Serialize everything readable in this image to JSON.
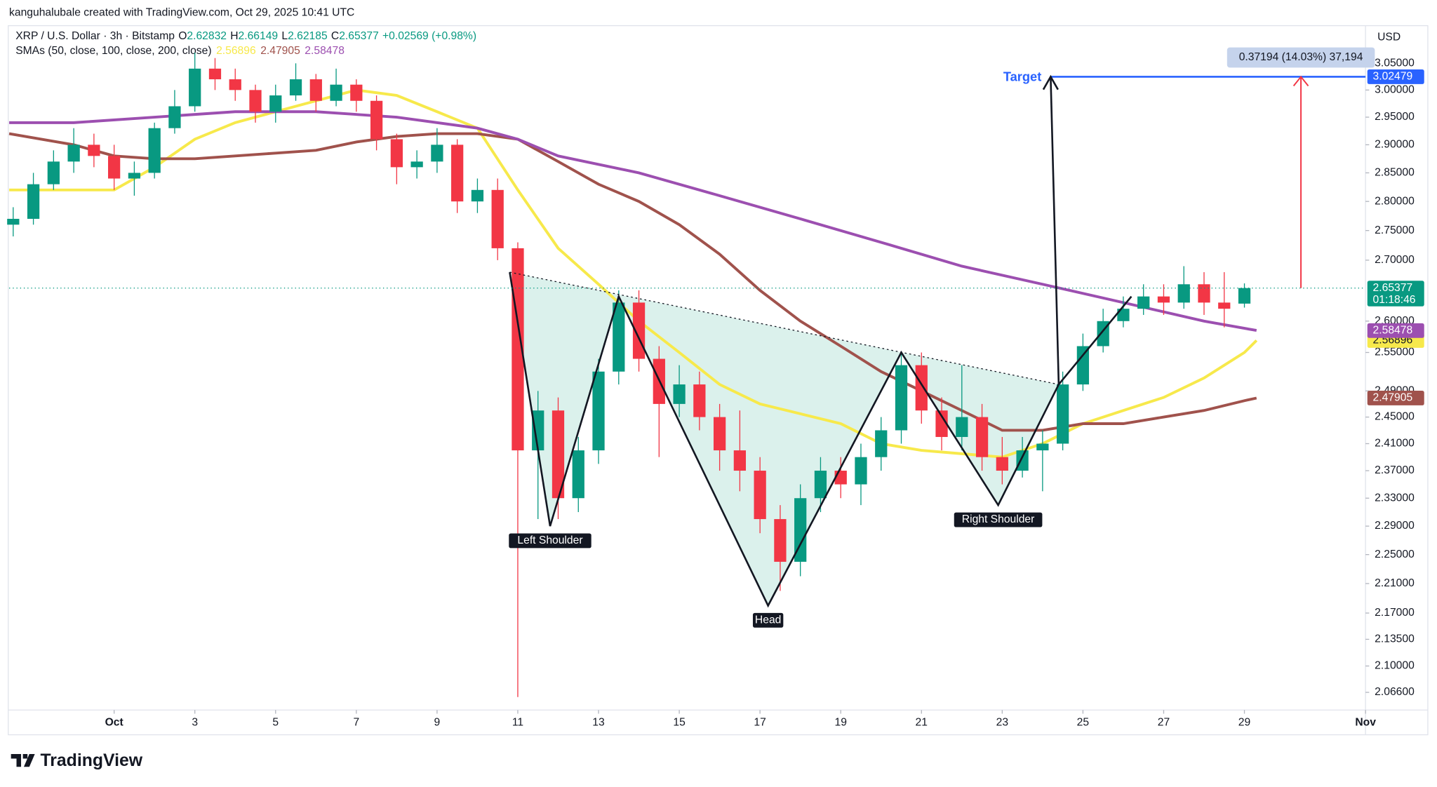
{
  "header": {
    "credit": "kanguhalubale created with TradingView.com, Oct 29, 2025 10:41 UTC",
    "symbol": "XRP / U.S. Dollar · 3h · Bitstamp",
    "quote": [
      {
        "key": "O",
        "value": 2.62832
      },
      {
        "key": "H",
        "value": 2.66149
      },
      {
        "key": "L",
        "value": 2.62185
      },
      {
        "key": "C",
        "value": 2.65377
      }
    ],
    "change": "+0.02569 (+0.98%)",
    "indicator": "SMAs (50, close, 100, close, 200, close)",
    "currency": "USD"
  },
  "footer": {
    "logo": "TradingView"
  },
  "chart_data": {
    "type": "candlestick",
    "log_scale": true,
    "grid": false,
    "up_color": "#089981",
    "down_color": "#f23645",
    "x": [
      -1.5,
      -1,
      -0.5,
      0,
      0.5,
      1,
      1.5,
      2,
      2.5,
      3,
      3.5,
      4,
      4.5,
      5,
      5.5,
      6,
      6.5,
      7,
      7.5,
      8,
      8.5,
      9,
      9.5,
      10,
      10.5,
      11,
      11.5,
      12,
      12.5,
      13,
      13.5,
      14,
      14.5,
      15,
      15.5,
      16,
      16.5,
      17,
      17.5,
      18,
      18.5,
      19,
      19.5,
      20,
      20.5,
      21,
      21.5,
      22,
      22.5,
      23,
      23.5,
      24,
      24.5,
      25,
      25.5,
      26,
      26.5,
      27,
      27.5,
      28,
      28.5,
      29
    ],
    "open": [
      2.76,
      2.77,
      2.83,
      2.87,
      2.9,
      2.88,
      2.84,
      2.85,
      2.93,
      2.97,
      3.04,
      3.02,
      3.0,
      2.96,
      2.99,
      3.02,
      2.98,
      3.01,
      2.98,
      2.91,
      2.86,
      2.87,
      2.9,
      2.8,
      2.82,
      2.72,
      2.4,
      2.46,
      2.33,
      2.4,
      2.52,
      2.63,
      2.54,
      2.47,
      2.5,
      2.45,
      2.4,
      2.37,
      2.3,
      2.24,
      2.33,
      2.37,
      2.35,
      2.39,
      2.43,
      2.53,
      2.46,
      2.42,
      2.45,
      2.39,
      2.37,
      2.4,
      2.41,
      2.5,
      2.56,
      2.6,
      2.62,
      2.64,
      2.63,
      2.66,
      2.63,
      2.62832
    ],
    "high": [
      2.79,
      2.85,
      2.89,
      2.93,
      2.92,
      2.9,
      2.87,
      2.94,
      3.0,
      3.07,
      3.06,
      3.04,
      3.01,
      3.01,
      3.05,
      3.03,
      3.04,
      3.02,
      2.99,
      2.92,
      2.89,
      2.93,
      2.91,
      2.84,
      2.84,
      2.73,
      2.49,
      2.48,
      2.42,
      2.54,
      2.65,
      2.65,
      2.56,
      2.53,
      2.52,
      2.47,
      2.46,
      2.39,
      2.32,
      2.35,
      2.39,
      2.39,
      2.41,
      2.45,
      2.55,
      2.55,
      2.48,
      2.53,
      2.47,
      2.42,
      2.42,
      2.43,
      2.52,
      2.58,
      2.62,
      2.64,
      2.66,
      2.66,
      2.69,
      2.68,
      2.68,
      2.66149
    ],
    "low": [
      2.74,
      2.76,
      2.82,
      2.85,
      2.86,
      2.82,
      2.81,
      2.84,
      2.92,
      2.96,
      3.0,
      2.98,
      2.94,
      2.94,
      2.98,
      2.96,
      2.97,
      2.96,
      2.89,
      2.83,
      2.84,
      2.85,
      2.78,
      2.78,
      2.7,
      2.06,
      2.3,
      2.3,
      2.31,
      2.38,
      2.5,
      2.52,
      2.39,
      2.45,
      2.43,
      2.37,
      2.34,
      2.28,
      2.2,
      2.22,
      2.31,
      2.33,
      2.32,
      2.37,
      2.41,
      2.44,
      2.4,
      2.4,
      2.37,
      2.35,
      2.36,
      2.34,
      2.4,
      2.49,
      2.55,
      2.59,
      2.61,
      2.61,
      2.62,
      2.61,
      2.59,
      2.62185
    ],
    "close": [
      2.77,
      2.83,
      2.87,
      2.9,
      2.88,
      2.84,
      2.85,
      2.93,
      2.97,
      3.04,
      3.02,
      3.0,
      2.96,
      2.99,
      3.02,
      2.98,
      3.01,
      2.98,
      2.91,
      2.86,
      2.87,
      2.9,
      2.8,
      2.82,
      2.72,
      2.4,
      2.46,
      2.33,
      2.4,
      2.52,
      2.63,
      2.54,
      2.47,
      2.5,
      2.45,
      2.4,
      2.37,
      2.3,
      2.24,
      2.33,
      2.37,
      2.35,
      2.39,
      2.43,
      2.53,
      2.46,
      2.42,
      2.45,
      2.39,
      2.37,
      2.4,
      2.41,
      2.5,
      2.56,
      2.6,
      2.62,
      2.64,
      2.63,
      2.66,
      2.63,
      2.62,
      2.65377
    ],
    "series": [
      {
        "color": "#f7e94b",
        "last_value": 2.56896,
        "label_color": "#131722",
        "x": [
          -1.6,
          0,
          1,
          2,
          3,
          4,
          5,
          6,
          7,
          8,
          9,
          10,
          11,
          12,
          13,
          14,
          15,
          16,
          17,
          18,
          19,
          20,
          21,
          22,
          23,
          24,
          25,
          26,
          27,
          28,
          29,
          29.3
        ],
        "values": [
          2.82,
          2.82,
          2.82,
          2.86,
          2.91,
          2.94,
          2.96,
          2.98,
          3.0,
          2.99,
          2.96,
          2.93,
          2.82,
          2.72,
          2.66,
          2.6,
          2.55,
          2.5,
          2.47,
          2.455,
          2.44,
          2.41,
          2.4,
          2.395,
          2.39,
          2.41,
          2.44,
          2.46,
          2.48,
          2.51,
          2.55,
          2.569
        ]
      },
      {
        "color": "#a0524c",
        "last_value": 2.47905,
        "label_color": "#ffffff",
        "x": [
          -1.6,
          0,
          1,
          2,
          3,
          4,
          5,
          6,
          7,
          8,
          9,
          10,
          11,
          12,
          13,
          14,
          15,
          16,
          17,
          18,
          19,
          20,
          21,
          22,
          23,
          24,
          25,
          26,
          27,
          28,
          29,
          29.3
        ],
        "values": [
          2.92,
          2.9,
          2.88,
          2.875,
          2.875,
          2.88,
          2.885,
          2.89,
          2.905,
          2.915,
          2.92,
          2.92,
          2.91,
          2.87,
          2.83,
          2.8,
          2.76,
          2.71,
          2.65,
          2.6,
          2.56,
          2.52,
          2.49,
          2.46,
          2.43,
          2.43,
          2.44,
          2.44,
          2.45,
          2.46,
          2.475,
          2.479
        ]
      },
      {
        "color": "#9c4fb0",
        "last_value": 2.58478,
        "label_color": "#ffffff",
        "x": [
          -1.6,
          0,
          2,
          4,
          6,
          8,
          10,
          11,
          12,
          14,
          16,
          18,
          20,
          22,
          24,
          26,
          28,
          29.3
        ],
        "values": [
          2.94,
          2.94,
          2.95,
          2.96,
          2.96,
          2.95,
          2.93,
          2.91,
          2.88,
          2.85,
          2.81,
          2.77,
          2.73,
          2.69,
          2.66,
          2.63,
          2.6,
          2.585
        ]
      }
    ],
    "xlim": [
      -1.6,
      32
    ],
    "xticks": [
      {
        "value": 1,
        "label": "Oct"
      },
      3,
      5,
      7,
      9,
      11,
      13,
      15,
      17,
      19,
      21,
      23,
      25,
      27,
      29,
      {
        "value": 32,
        "label": "Nov"
      }
    ],
    "ylim": [
      2.0435,
      3.122
    ],
    "yticks": [
      {
        "value": 3.05,
        "label": "3.05000"
      },
      {
        "value": 3.0,
        "label": "3.00000"
      },
      {
        "value": 2.95,
        "label": "2.95000"
      },
      {
        "value": 2.9,
        "label": "2.90000"
      },
      {
        "value": 2.85,
        "label": "2.85000"
      },
      {
        "value": 2.8,
        "label": "2.80000"
      },
      {
        "value": 2.75,
        "label": "2.75000"
      },
      {
        "value": 2.7,
        "label": "2.70000"
      },
      {
        "value": 2.6,
        "label": "2.60000"
      },
      {
        "value": 2.55,
        "label": "2.55000"
      },
      {
        "value": 2.49,
        "label": "2.49000"
      },
      {
        "value": 2.45,
        "label": "2.45000"
      },
      {
        "value": 2.41,
        "label": "2.41000"
      },
      {
        "value": 2.37,
        "label": "2.37000"
      },
      {
        "value": 2.33,
        "label": "2.33000"
      },
      {
        "value": 2.29,
        "label": "2.29000"
      },
      {
        "value": 2.25,
        "label": "2.25000"
      },
      {
        "value": 2.21,
        "label": "2.21000"
      },
      {
        "value": 2.17,
        "label": "2.17000"
      },
      {
        "value": 2.135,
        "label": "2.13500"
      },
      {
        "value": 2.1,
        "label": "2.10000"
      },
      {
        "value": 2.066,
        "label": "2.06600"
      }
    ],
    "price_tag": {
      "value": 2.65377,
      "countdown": "01:18:46",
      "color": "#089981"
    },
    "target": {
      "label": "Target",
      "value": 3.02479,
      "x_start": 24.2,
      "color": "#2962ff"
    },
    "measure": {
      "label": "0.37194 (14.03%) 37,194",
      "x": 30.4,
      "color": "#f23645"
    },
    "pattern": {
      "points": [
        {
          "x": 10.8,
          "y": 2.68
        },
        {
          "x": 11.8,
          "y": 2.29
        },
        {
          "x": 13.5,
          "y": 2.64
        },
        {
          "x": 17.2,
          "y": 2.18
        },
        {
          "x": 20.5,
          "y": 2.55
        },
        {
          "x": 22.9,
          "y": 2.32
        },
        {
          "x": 24.4,
          "y": 2.5
        }
      ],
      "breakout": {
        "x": 26.2,
        "y": 2.64
      },
      "labels": [
        "Left Shoulder",
        "Head",
        "Right Shoulder"
      ],
      "fill": "#009b7a"
    }
  }
}
